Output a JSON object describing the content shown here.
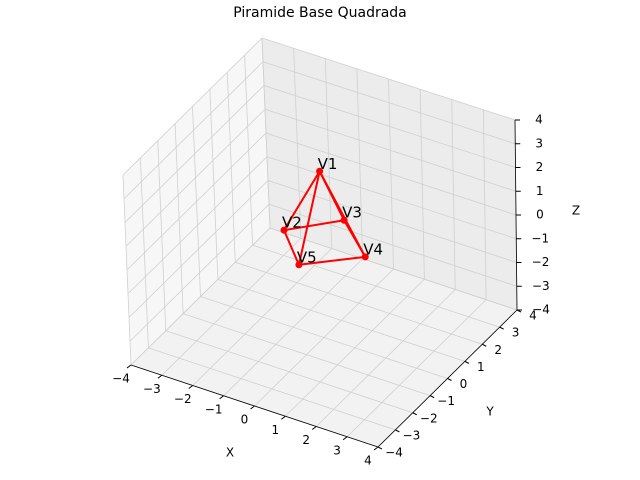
{
  "chart_data": {
    "type": "scatter3d",
    "title": "Piramide Base Quadrada",
    "labels": [
      "V1",
      "V2",
      "V3",
      "V4",
      "V5"
    ],
    "x": [
      0,
      -1.2,
      0,
      1.4,
      0
    ],
    "y": [
      0,
      0,
      1.3,
      0,
      -1.3
    ],
    "z": [
      3,
      0,
      0,
      0,
      0
    ],
    "edges": [
      [
        0,
        1
      ],
      [
        0,
        2
      ],
      [
        0,
        3
      ],
      [
        0,
        4
      ],
      [
        1,
        2
      ],
      [
        2,
        3
      ],
      [
        3,
        4
      ],
      [
        4,
        1
      ]
    ],
    "color": "#ff0000",
    "xlabel": "X",
    "ylabel": "Y",
    "zlabel": "Z",
    "xlim": [
      -4,
      4
    ],
    "ylim": [
      -4,
      4
    ],
    "zlim": [
      -4,
      4
    ],
    "xticks": [
      {
        "value": -4,
        "label": "−4"
      },
      {
        "value": -3,
        "label": "−3"
      },
      {
        "value": -2,
        "label": "−2"
      },
      {
        "value": -1,
        "label": "−1"
      },
      0,
      1,
      2,
      3,
      4
    ],
    "yticks": [
      {
        "value": -4,
        "label": "−4"
      },
      {
        "value": -3,
        "label": "−3"
      },
      {
        "value": -2,
        "label": "−2"
      },
      {
        "value": -1,
        "label": "−1"
      },
      0,
      1,
      2,
      3,
      4
    ],
    "zticks": [
      {
        "value": -4,
        "label": "−4"
      },
      {
        "value": -3,
        "label": "−3"
      },
      {
        "value": -2,
        "label": "−2"
      },
      {
        "value": -1,
        "label": "−1"
      },
      0,
      1,
      2,
      3,
      4
    ],
    "grid": true
  }
}
